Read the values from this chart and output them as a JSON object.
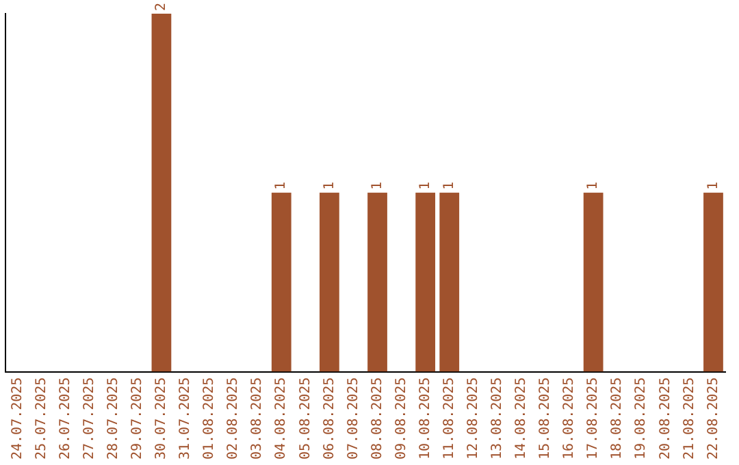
{
  "chart_data": {
    "type": "bar",
    "categories": [
      "24.07.2025",
      "25.07.2025",
      "26.07.2025",
      "27.07.2025",
      "28.07.2025",
      "29.07.2025",
      "30.07.2025",
      "31.07.2025",
      "01.08.2025",
      "02.08.2025",
      "03.08.2025",
      "04.08.2025",
      "05.08.2025",
      "06.08.2025",
      "07.08.2025",
      "08.08.2025",
      "09.08.2025",
      "10.08.2025",
      "11.08.2025",
      "12.08.2025",
      "13.08.2025",
      "14.08.2025",
      "15.08.2025",
      "16.08.2025",
      "17.08.2025",
      "18.08.2025",
      "19.08.2025",
      "20.08.2025",
      "21.08.2025",
      "22.08.2025"
    ],
    "values": [
      0,
      0,
      0,
      0,
      0,
      0,
      2,
      0,
      0,
      0,
      0,
      1,
      0,
      1,
      0,
      1,
      0,
      1,
      1,
      0,
      0,
      0,
      0,
      0,
      1,
      0,
      0,
      0,
      0,
      1
    ],
    "value_labels": [
      null,
      null,
      null,
      null,
      null,
      null,
      "2",
      null,
      null,
      null,
      null,
      "1",
      null,
      "1",
      null,
      "1",
      null,
      "1",
      "1",
      null,
      null,
      null,
      null,
      null,
      "1",
      null,
      null,
      null,
      null,
      "1"
    ],
    "color": "#a0522d",
    "grid": false,
    "legend": false,
    "tick_labels": "x"
  }
}
